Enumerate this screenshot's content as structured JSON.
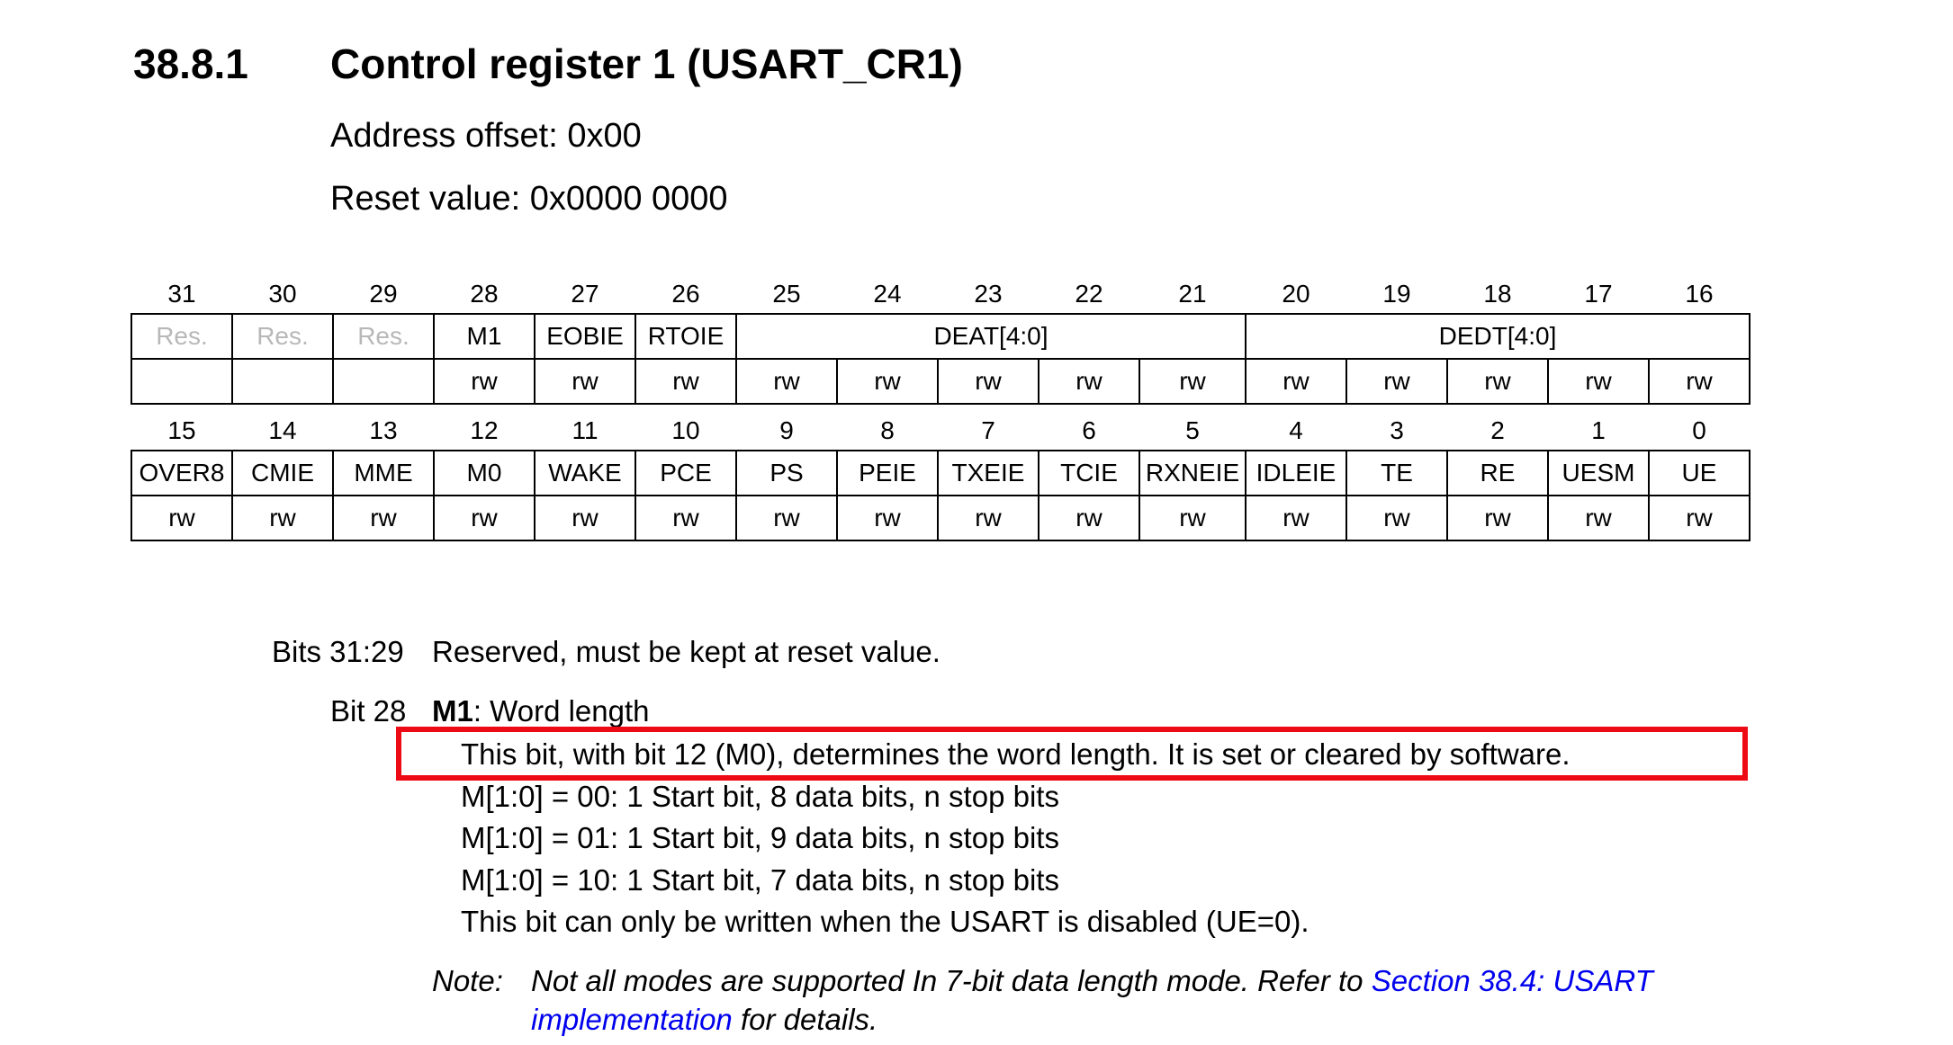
{
  "section": {
    "number": "38.8.1",
    "title": "Control register 1 (USART_CR1)",
    "address_offset": "Address offset: 0x00",
    "reset_value": "Reset value: 0x0000 0000"
  },
  "register": {
    "upper": {
      "bit_numbers": [
        "31",
        "30",
        "29",
        "28",
        "27",
        "26",
        "25",
        "24",
        "23",
        "22",
        "21",
        "20",
        "19",
        "18",
        "17",
        "16"
      ],
      "fields": [
        {
          "label": "Res.",
          "span": 1,
          "reserved": true
        },
        {
          "label": "Res.",
          "span": 1,
          "reserved": true
        },
        {
          "label": "Res.",
          "span": 1,
          "reserved": true
        },
        {
          "label": "M1",
          "span": 1,
          "reserved": false
        },
        {
          "label": "EOBIE",
          "span": 1,
          "reserved": false
        },
        {
          "label": "RTOIE",
          "span": 1,
          "reserved": false
        },
        {
          "label": "DEAT[4:0]",
          "span": 5,
          "reserved": false
        },
        {
          "label": "DEDT[4:0]",
          "span": 5,
          "reserved": false
        }
      ],
      "access": [
        "",
        "",
        "",
        "rw",
        "rw",
        "rw",
        "rw",
        "rw",
        "rw",
        "rw",
        "rw",
        "rw",
        "rw",
        "rw",
        "rw",
        "rw"
      ]
    },
    "lower": {
      "bit_numbers": [
        "15",
        "14",
        "13",
        "12",
        "11",
        "10",
        "9",
        "8",
        "7",
        "6",
        "5",
        "4",
        "3",
        "2",
        "1",
        "0"
      ],
      "fields": [
        {
          "label": "OVER8",
          "span": 1,
          "reserved": false
        },
        {
          "label": "CMIE",
          "span": 1,
          "reserved": false
        },
        {
          "label": "MME",
          "span": 1,
          "reserved": false
        },
        {
          "label": "M0",
          "span": 1,
          "reserved": false
        },
        {
          "label": "WAKE",
          "span": 1,
          "reserved": false
        },
        {
          "label": "PCE",
          "span": 1,
          "reserved": false
        },
        {
          "label": "PS",
          "span": 1,
          "reserved": false
        },
        {
          "label": "PEIE",
          "span": 1,
          "reserved": false
        },
        {
          "label": "TXEIE",
          "span": 1,
          "reserved": false
        },
        {
          "label": "TCIE",
          "span": 1,
          "reserved": false
        },
        {
          "label": "RXNEIE",
          "span": 1,
          "reserved": false
        },
        {
          "label": "IDLEIE",
          "span": 1,
          "reserved": false
        },
        {
          "label": "TE",
          "span": 1,
          "reserved": false
        },
        {
          "label": "RE",
          "span": 1,
          "reserved": false
        },
        {
          "label": "UESM",
          "span": 1,
          "reserved": false
        },
        {
          "label": "UE",
          "span": 1,
          "reserved": false
        }
      ],
      "access": [
        "rw",
        "rw",
        "rw",
        "rw",
        "rw",
        "rw",
        "rw",
        "rw",
        "rw",
        "rw",
        "rw",
        "rw",
        "rw",
        "rw",
        "rw",
        "rw"
      ]
    }
  },
  "description": {
    "bits_31_29_label": "Bits 31:29",
    "bits_31_29_text": "Reserved, must be kept at reset value.",
    "bit_28_label": "Bit 28",
    "bit_28_name": "M1",
    "bit_28_title": ": Word length",
    "highlighted_line": "This bit, with bit 12 (M0), determines the word length. It is set or cleared by software.",
    "lines": [
      "M[1:0] = 00: 1 Start bit, 8 data bits, n stop bits",
      "M[1:0] = 01: 1 Start bit, 9 data bits, n stop bits",
      "M[1:0] = 10: 1 Start bit, 7 data bits, n stop bits",
      "This bit can only be written when the USART is disabled (UE=0)."
    ],
    "note": {
      "label": "Note:",
      "text_before": "Not all modes are supported In 7-bit data length mode. Refer to ",
      "link_part1": "Section 38.4: USART",
      "link_part2": "implementation",
      "text_after": " for details."
    }
  },
  "colors": {
    "highlight_box": "#ee0a14",
    "link": "#0000ee",
    "reserved_text": "#b8b8b8"
  }
}
